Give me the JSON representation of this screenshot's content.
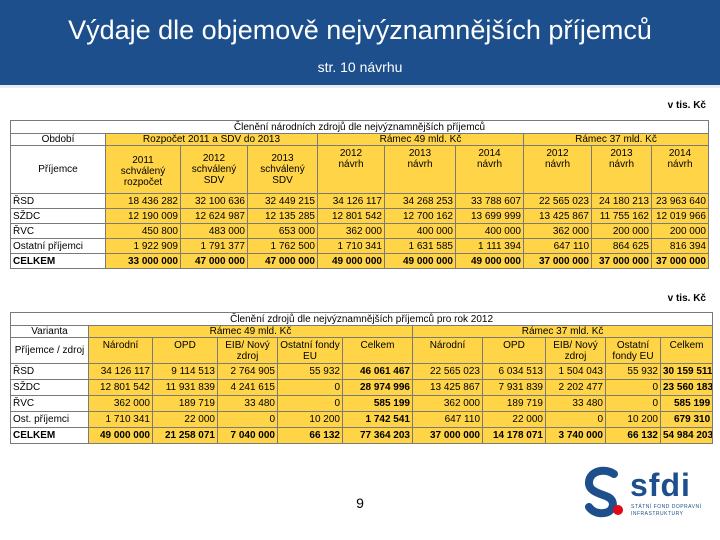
{
  "header": {
    "title": "Výdaje dle objemově nejvýznamnějších příjemců",
    "subtitle": "str. 10 návrhu"
  },
  "unit_label": "v tis. Kč",
  "table1": {
    "caption": "Členění národních zdrojů dle nejvýznamnějších příjemců",
    "h_obdobi": "Období",
    "h_prijemce": "Příjemce",
    "h_rozpocet": "Rozpočet 2011 a SDV do 2013",
    "h_ramec49": "Rámec 49 mld. Kč",
    "h_ramec37": "Rámec 37 mld. Kč",
    "h_2011": "2011",
    "h_2011_sub": "schválený rozpočet",
    "h_2012": "2012",
    "h_2013": "2013",
    "h_2014": "2014",
    "h_schvaleny": "schválený",
    "h_sdv": "SDV",
    "h_navrh": "návrh",
    "rows": [
      {
        "name": "ŘSD",
        "v": [
          "18 436 282",
          "32 100 636",
          "32 449 215",
          "34 126 117",
          "34 268 253",
          "33 788 607",
          "22 565 023",
          "24 180 213",
          "23 963 640"
        ]
      },
      {
        "name": "SŽDC",
        "v": [
          "12 190 009",
          "12 624 987",
          "12 135 285",
          "12 801 542",
          "12 700 162",
          "13 699 999",
          "13 425 867",
          "11 755 162",
          "12 019 966"
        ]
      },
      {
        "name": "ŘVC",
        "v": [
          "450 800",
          "483 000",
          "653 000",
          "362 000",
          "400 000",
          "400 000",
          "362 000",
          "200 000",
          "200 000"
        ]
      },
      {
        "name": "Ostatní příjemci",
        "v": [
          "1 922 909",
          "1 791 377",
          "1 762 500",
          "1 710 341",
          "1 631 585",
          "1 111 394",
          "647 110",
          "864 625",
          "816 394"
        ]
      },
      {
        "name": "CELKEM",
        "v": [
          "33 000 000",
          "47 000 000",
          "47 000 000",
          "49 000 000",
          "49 000 000",
          "49 000 000",
          "37 000 000",
          "37 000 000",
          "37 000 000"
        ]
      }
    ]
  },
  "table2": {
    "caption": "Členění zdrojů dle nejvýznamnějších příjemců pro rok 2012",
    "h_varianta": "Varianta",
    "h_prijemce": "Příjemce / zdroj",
    "h_ramec49": "Rámec 49 mld. Kč",
    "h_ramec37": "Rámec 37 mld. Kč",
    "h_narodni": "Národní",
    "h_opd": "OPD",
    "h_eib": "EIB/ Nový zdroj",
    "h_ostatni": "Ostatní fondy EU",
    "h_celkem": "Celkem",
    "rows": [
      {
        "name": "ŘSD",
        "v": [
          "34 126 117",
          "9 114 513",
          "2 764 905",
          "55 932",
          "46 061 467",
          "22 565 023",
          "6 034 513",
          "1 504 043",
          "55 932",
          "30 159 511"
        ]
      },
      {
        "name": "SŽDC",
        "v": [
          "12 801 542",
          "11 931 839",
          "4 241 615",
          "0",
          "28 974 996",
          "13 425 867",
          "7 931 839",
          "2 202 477",
          "0",
          "23 560 183"
        ]
      },
      {
        "name": "ŘVC",
        "v": [
          "362 000",
          "189 719",
          "33 480",
          "0",
          "585 199",
          "362 000",
          "189 719",
          "33 480",
          "0",
          "585 199"
        ]
      },
      {
        "name": "Ost. příjemci",
        "v": [
          "1 710 341",
          "22 000",
          "0",
          "10 200",
          "1 742 541",
          "647 110",
          "22 000",
          "0",
          "10 200",
          "679 310"
        ]
      },
      {
        "name": "CELKEM",
        "v": [
          "49 000 000",
          "21 258 071",
          "7 040 000",
          "66 132",
          "77 364 203",
          "37 000 000",
          "14 178 071",
          "3 740 000",
          "66 132",
          "54 984 203"
        ]
      }
    ]
  },
  "page_number": "9",
  "logo": {
    "brand": "sfdi",
    "tagline_1": "STÁTNÍ FOND DOPRAVNÍ",
    "tagline_2": "INFRASTRUKTURY",
    "color": "#1c4f8c",
    "accent": "#e30613"
  }
}
